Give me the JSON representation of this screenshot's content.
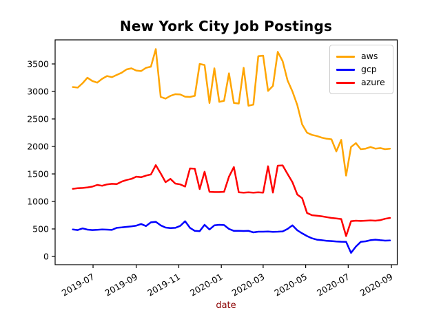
{
  "chart_data": {
    "type": "line",
    "title": "New York City Job Postings",
    "xlabel": "date",
    "ylabel": "",
    "xlabel_color": "#8b0000",
    "grid": false,
    "legend_position": "upper right",
    "x_tick_rotation": 30,
    "ylim": [
      -150,
      3937
    ],
    "y_ticks": [
      0,
      500,
      1000,
      1500,
      2000,
      2500,
      3000,
      3500
    ],
    "x_tick_dates": [
      "2019-07-01",
      "2019-09-01",
      "2019-11-01",
      "2020-01-01",
      "2020-03-01",
      "2020-05-01",
      "2020-07-01",
      "2020-09-01"
    ],
    "x_tick_labels": [
      "2019-07",
      "2019-09",
      "2019-11",
      "2020-01",
      "2020-03",
      "2020-05",
      "2020-07",
      "2020-09"
    ],
    "x": [
      "2019-06-02",
      "2019-06-09",
      "2019-06-16",
      "2019-06-23",
      "2019-06-30",
      "2019-07-07",
      "2019-07-14",
      "2019-07-21",
      "2019-07-28",
      "2019-08-04",
      "2019-08-11",
      "2019-08-18",
      "2019-08-25",
      "2019-09-01",
      "2019-09-08",
      "2019-09-15",
      "2019-09-22",
      "2019-09-29",
      "2019-10-06",
      "2019-10-13",
      "2019-10-20",
      "2019-10-27",
      "2019-11-03",
      "2019-11-10",
      "2019-11-17",
      "2019-11-24",
      "2019-12-01",
      "2019-12-08",
      "2019-12-15",
      "2019-12-22",
      "2019-12-29",
      "2020-01-05",
      "2020-01-12",
      "2020-01-19",
      "2020-01-26",
      "2020-02-02",
      "2020-02-09",
      "2020-02-16",
      "2020-02-23",
      "2020-03-01",
      "2020-03-08",
      "2020-03-15",
      "2020-03-22",
      "2020-03-29",
      "2020-04-05",
      "2020-04-12",
      "2020-04-19",
      "2020-04-26",
      "2020-05-03",
      "2020-05-10",
      "2020-05-17",
      "2020-05-24",
      "2020-05-31",
      "2020-06-07",
      "2020-06-14",
      "2020-06-21",
      "2020-06-28",
      "2020-07-05",
      "2020-07-12",
      "2020-07-19",
      "2020-07-26",
      "2020-08-02",
      "2020-08-09",
      "2020-08-16",
      "2020-08-23",
      "2020-08-30"
    ],
    "series": [
      {
        "name": "aws",
        "color": "#FFA500",
        "values": [
          3080,
          3070,
          3150,
          3250,
          3190,
          3160,
          3230,
          3280,
          3260,
          3300,
          3340,
          3400,
          3420,
          3380,
          3370,
          3430,
          3450,
          3770,
          2900,
          2870,
          2920,
          2950,
          2945,
          2905,
          2900,
          2920,
          3500,
          3480,
          2790,
          3420,
          2810,
          2830,
          3330,
          2790,
          2780,
          3430,
          2740,
          2760,
          3640,
          3650,
          3010,
          3100,
          3720,
          3550,
          3200,
          3000,
          2750,
          2400,
          2250,
          2210,
          2190,
          2160,
          2140,
          2130,
          1910,
          2120,
          1470,
          1990,
          2060,
          1950,
          1960,
          1990,
          1960,
          1970,
          1950,
          1960
        ]
      },
      {
        "name": "gcp",
        "color": "#0000FF",
        "values": [
          490,
          480,
          510,
          488,
          480,
          485,
          490,
          487,
          483,
          520,
          528,
          538,
          548,
          560,
          590,
          552,
          620,
          630,
          565,
          525,
          515,
          520,
          555,
          640,
          520,
          465,
          460,
          575,
          490,
          565,
          575,
          570,
          500,
          465,
          465,
          462,
          465,
          438,
          450,
          450,
          452,
          448,
          450,
          455,
          500,
          565,
          475,
          420,
          370,
          330,
          305,
          295,
          285,
          280,
          272,
          268,
          265,
          65,
          180,
          265,
          275,
          295,
          305,
          295,
          288,
          290
        ]
      },
      {
        "name": "azure",
        "color": "#FF0000",
        "values": [
          1230,
          1240,
          1245,
          1255,
          1270,
          1300,
          1285,
          1310,
          1320,
          1315,
          1360,
          1390,
          1410,
          1450,
          1440,
          1470,
          1490,
          1660,
          1510,
          1350,
          1410,
          1325,
          1310,
          1270,
          1600,
          1595,
          1225,
          1540,
          1175,
          1170,
          1170,
          1175,
          1450,
          1625,
          1165,
          1160,
          1165,
          1160,
          1165,
          1160,
          1640,
          1160,
          1650,
          1655,
          1500,
          1350,
          1125,
          1060,
          790,
          750,
          740,
          730,
          715,
          700,
          690,
          680,
          370,
          640,
          650,
          645,
          650,
          655,
          650,
          660,
          685,
          700
        ]
      }
    ]
  }
}
